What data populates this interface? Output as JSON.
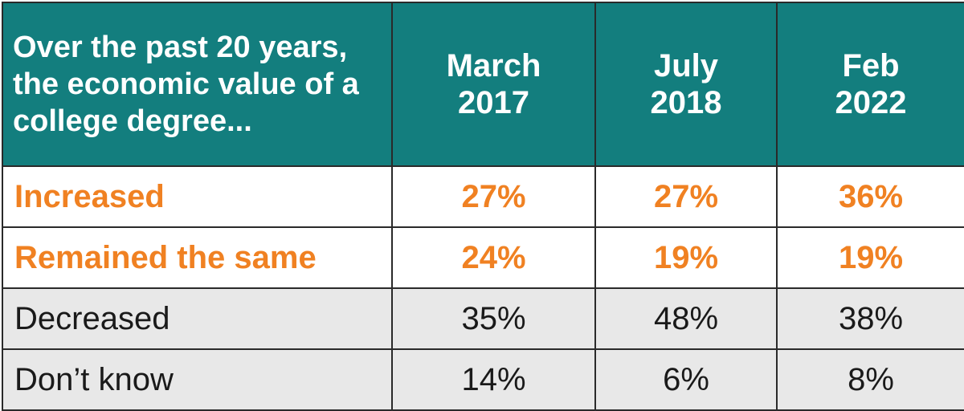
{
  "table": {
    "question": "Over the past 20 years, the economic value of a college degree...",
    "columns": [
      {
        "line1": "March",
        "line2": "2017"
      },
      {
        "line1": "July",
        "line2": "2018"
      },
      {
        "line1": "Feb",
        "line2": "2022"
      }
    ],
    "rows": [
      {
        "label": "Increased",
        "values": [
          "27%",
          "27%",
          "36%"
        ],
        "highlight": true
      },
      {
        "label": "Remained the same",
        "values": [
          "24%",
          "19%",
          "19%"
        ],
        "highlight": true
      },
      {
        "label": "Decreased",
        "values": [
          "35%",
          "48%",
          "38%"
        ],
        "highlight": false
      },
      {
        "label": "Don’t know",
        "values": [
          "14%",
          "6%",
          "8%"
        ],
        "highlight": false
      }
    ]
  },
  "colors": {
    "header_bg": "#137e7e",
    "header_text": "#ffffff",
    "highlight_text": "#f08122",
    "plain_row_bg": "#e8e8e8",
    "border": "#2a2a2a"
  }
}
